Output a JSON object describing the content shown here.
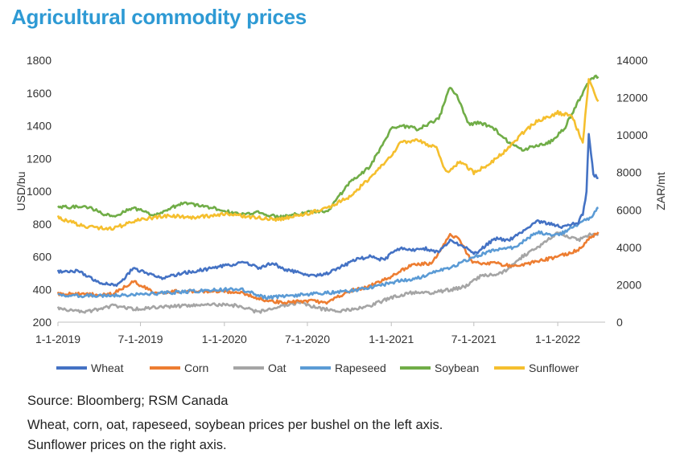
{
  "title": "Agricultural commodity prices",
  "notes": {
    "source": "Source: Bloomberg; RSM Canada",
    "line1": "Wheat, corn, oat, rapeseed, soybean prices per bushel on the left axis.",
    "line2": "Sunflower prices on the right axis."
  },
  "chart_data": {
    "type": "line",
    "ylabel": "USD/bu",
    "y2label": "ZAR/mt",
    "ylim": [
      200,
      1800
    ],
    "y2lim": [
      0,
      14000
    ],
    "yticks": [
      200,
      400,
      600,
      800,
      1000,
      1200,
      1400,
      1600,
      1800
    ],
    "y2ticks": [
      0,
      2000,
      4000,
      6000,
      8000,
      10000,
      12000,
      14000
    ],
    "xlim": [
      "2019-01-01",
      "2022-04-15"
    ],
    "xticks": [
      "1-1-2019",
      "7-1-2019",
      "1-1-2020",
      "7-1-2020",
      "1-1-2021",
      "7-1-2021",
      "1-1-2022"
    ],
    "grid": false,
    "legend_position": "bottom",
    "series": [
      {
        "name": "Wheat",
        "color": "#4472c4",
        "axis": "left",
        "x": [
          "2019-01-01",
          "2019-02-15",
          "2019-04-01",
          "2019-05-15",
          "2019-06-15",
          "2019-07-10",
          "2019-08-15",
          "2019-10-01",
          "2019-11-15",
          "2020-01-15",
          "2020-02-15",
          "2020-03-15",
          "2020-04-15",
          "2020-05-15",
          "2020-06-15",
          "2020-07-15",
          "2020-08-15",
          "2020-09-15",
          "2020-10-15",
          "2020-11-15",
          "2020-12-15",
          "2021-01-15",
          "2021-02-15",
          "2021-03-15",
          "2021-04-15",
          "2021-05-10",
          "2021-05-25",
          "2021-06-15",
          "2021-07-01",
          "2021-07-15",
          "2021-08-15",
          "2021-09-15",
          "2021-10-15",
          "2021-11-15",
          "2021-12-15",
          "2022-01-15",
          "2022-02-15",
          "2022-02-25",
          "2022-03-05",
          "2022-03-10",
          "2022-03-20",
          "2022-03-31"
        ],
        "values": [
          510,
          515,
          440,
          430,
          530,
          505,
          470,
          500,
          520,
          550,
          570,
          530,
          560,
          520,
          500,
          480,
          500,
          540,
          580,
          600,
          580,
          650,
          640,
          650,
          630,
          700,
          680,
          660,
          620,
          640,
          710,
          700,
          750,
          820,
          800,
          780,
          810,
          860,
          1000,
          1350,
          1100,
          1080
        ]
      },
      {
        "name": "Corn",
        "color": "#ed7d31",
        "axis": "left",
        "x": [
          "2019-01-01",
          "2019-03-01",
          "2019-05-01",
          "2019-06-15",
          "2019-08-01",
          "2019-10-01",
          "2019-12-01",
          "2020-02-01",
          "2020-04-01",
          "2020-05-15",
          "2020-07-01",
          "2020-08-15",
          "2020-10-01",
          "2020-11-15",
          "2021-01-01",
          "2021-02-15",
          "2021-04-01",
          "2021-05-10",
          "2021-06-01",
          "2021-06-20",
          "2021-07-01",
          "2021-08-15",
          "2021-10-01",
          "2021-11-15",
          "2022-01-01",
          "2022-02-15",
          "2022-03-15",
          "2022-03-31"
        ],
        "values": [
          375,
          370,
          370,
          450,
          380,
          390,
          390,
          385,
          330,
          320,
          330,
          320,
          390,
          420,
          480,
          550,
          560,
          740,
          700,
          600,
          560,
          560,
          540,
          570,
          600,
          640,
          720,
          750
        ]
      },
      {
        "name": "Oat",
        "color": "#a5a5a5",
        "axis": "left",
        "x": [
          "2019-01-01",
          "2019-03-01",
          "2019-05-01",
          "2019-06-15",
          "2019-08-01",
          "2019-10-01",
          "2019-12-01",
          "2020-02-01",
          "2020-03-15",
          "2020-05-01",
          "2020-06-15",
          "2020-08-01",
          "2020-09-15",
          "2020-11-15",
          "2021-01-01",
          "2021-02-15",
          "2021-04-01",
          "2021-05-15",
          "2021-06-15",
          "2021-07-15",
          "2021-09-01",
          "2021-10-15",
          "2021-12-01",
          "2022-01-01",
          "2022-02-15",
          "2022-03-15",
          "2022-03-31"
        ],
        "values": [
          285,
          260,
          300,
          280,
          290,
          300,
          310,
          300,
          260,
          300,
          320,
          280,
          270,
          300,
          350,
          380,
          380,
          400,
          420,
          480,
          500,
          600,
          680,
          750,
          700,
          740,
          730
        ]
      },
      {
        "name": "Rapeseed",
        "color": "#5b9bd5",
        "axis": "left",
        "x": [
          "2019-01-01",
          "2019-04-01",
          "2019-07-01",
          "2019-10-01",
          "2020-01-01",
          "2020-02-01",
          "2020-04-01",
          "2020-07-01",
          "2020-10-01",
          "2020-12-01",
          "2021-01-15",
          "2021-03-01",
          "2021-04-15",
          "2021-05-10",
          "2021-06-01",
          "2021-07-01",
          "2021-08-15",
          "2021-10-01",
          "2021-11-15",
          "2022-01-01",
          "2022-02-15",
          "2022-03-15",
          "2022-03-31"
        ],
        "values": [
          365,
          360,
          370,
          385,
          400,
          405,
          350,
          370,
          390,
          420,
          450,
          470,
          520,
          530,
          560,
          600,
          640,
          660,
          750,
          730,
          800,
          840,
          900
        ]
      },
      {
        "name": "Soybean",
        "color": "#70ad47",
        "axis": "left",
        "x": [
          "2019-01-01",
          "2019-03-01",
          "2019-05-01",
          "2019-06-15",
          "2019-08-01",
          "2019-10-01",
          "2019-12-01",
          "2020-02-01",
          "2020-03-15",
          "2020-05-01",
          "2020-07-01",
          "2020-08-15",
          "2020-10-01",
          "2020-11-15",
          "2021-01-01",
          "2021-01-20",
          "2021-03-01",
          "2021-04-15",
          "2021-05-10",
          "2021-05-25",
          "2021-06-20",
          "2021-07-15",
          "2021-08-15",
          "2021-09-15",
          "2021-10-15",
          "2021-11-15",
          "2021-12-15",
          "2022-01-15",
          "2022-02-15",
          "2022-03-01",
          "2022-03-15",
          "2022-03-31"
        ],
        "values": [
          900,
          910,
          840,
          900,
          850,
          930,
          900,
          860,
          870,
          840,
          870,
          880,
          1050,
          1150,
          1380,
          1400,
          1380,
          1440,
          1640,
          1580,
          1410,
          1420,
          1380,
          1300,
          1250,
          1280,
          1300,
          1380,
          1550,
          1620,
          1690,
          1700
        ]
      },
      {
        "name": "Sunflower",
        "color": "#f5bf2e",
        "axis": "right",
        "x": [
          "2019-01-01",
          "2019-03-01",
          "2019-05-01",
          "2019-07-01",
          "2019-09-01",
          "2019-11-01",
          "2020-01-01",
          "2020-03-01",
          "2020-05-01",
          "2020-07-01",
          "2020-08-15",
          "2020-10-01",
          "2020-11-15",
          "2021-01-01",
          "2021-01-20",
          "2021-03-01",
          "2021-04-10",
          "2021-05-01",
          "2021-06-01",
          "2021-07-01",
          "2021-08-01",
          "2021-09-15",
          "2021-10-15",
          "2021-11-15",
          "2021-12-15",
          "2022-01-01",
          "2022-02-01",
          "2022-02-25",
          "2022-03-10",
          "2022-03-31"
        ],
        "values": [
          5600,
          5100,
          5000,
          5500,
          5700,
          5600,
          5800,
          5600,
          5500,
          5800,
          6100,
          6700,
          7700,
          8900,
          9600,
          9700,
          9300,
          8000,
          8600,
          8000,
          8400,
          9300,
          10100,
          10700,
          11000,
          11200,
          11000,
          9600,
          13000,
          11800
        ]
      }
    ]
  }
}
